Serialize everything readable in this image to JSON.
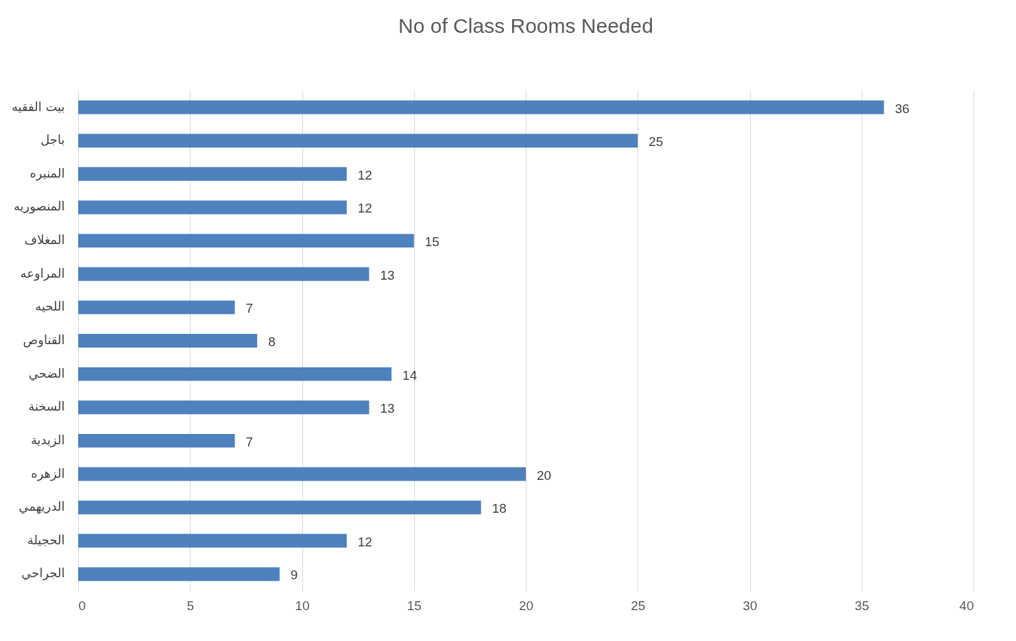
{
  "chart_data": {
    "type": "bar",
    "orientation": "horizontal",
    "title": "No of Class Rooms Needed",
    "categories": [
      "بيت الفقيه",
      "باجل",
      "المنيره",
      "المنصوريه",
      "المغلاف",
      "المراوعه",
      "اللحيه",
      "القناوص",
      "الضحي",
      "السخنة",
      "الزيدية",
      "الزهره",
      "الدريهمي",
      "الحجيلة",
      "الجراحي"
    ],
    "values": [
      36,
      25,
      12,
      12,
      15,
      13,
      7,
      8,
      14,
      13,
      7,
      20,
      18,
      12,
      9
    ],
    "color": "#4e81bd",
    "xlim": [
      0,
      40
    ],
    "xticks": [
      0,
      5,
      10,
      15,
      20,
      25,
      30,
      35,
      40
    ],
    "grid": "x",
    "data_labels": true
  }
}
